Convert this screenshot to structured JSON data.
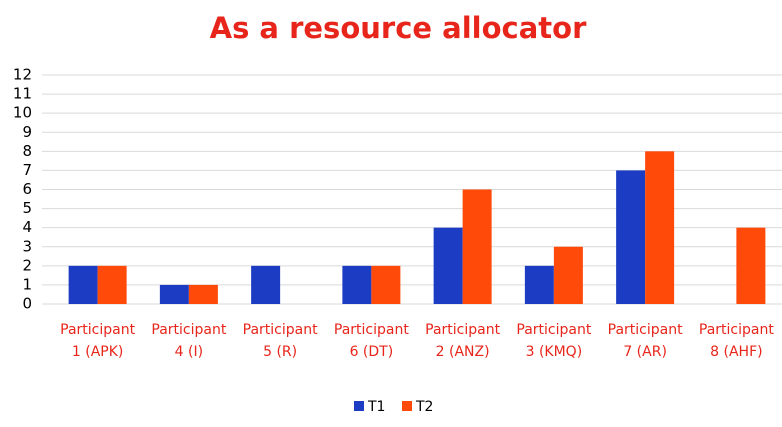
{
  "chart_data": {
    "type": "bar",
    "title": "As a resource allocator",
    "categories": [
      "Participant 1 (APK)",
      "Participant 4 (I)",
      "Participant 5 (R)",
      "Participant 6 (DT)",
      "Participant 2 (ANZ)",
      "Participant 3 (KMQ)",
      "Participant 7 (AR)",
      "Participant 8 (AHF)"
    ],
    "series": [
      {
        "name": "T1",
        "color": "#1c3cc4",
        "values": [
          2,
          1,
          2,
          2,
          4,
          2,
          7,
          0
        ]
      },
      {
        "name": "T2",
        "color": "#ff4a0a",
        "values": [
          2,
          1,
          0,
          2,
          6,
          3,
          8,
          4
        ]
      }
    ],
    "ylim": [
      0,
      12
    ],
    "yticks": [
      0,
      1,
      2,
      3,
      4,
      5,
      6,
      7,
      8,
      9,
      10,
      11,
      12
    ],
    "grid": true,
    "legend": "bottom"
  }
}
